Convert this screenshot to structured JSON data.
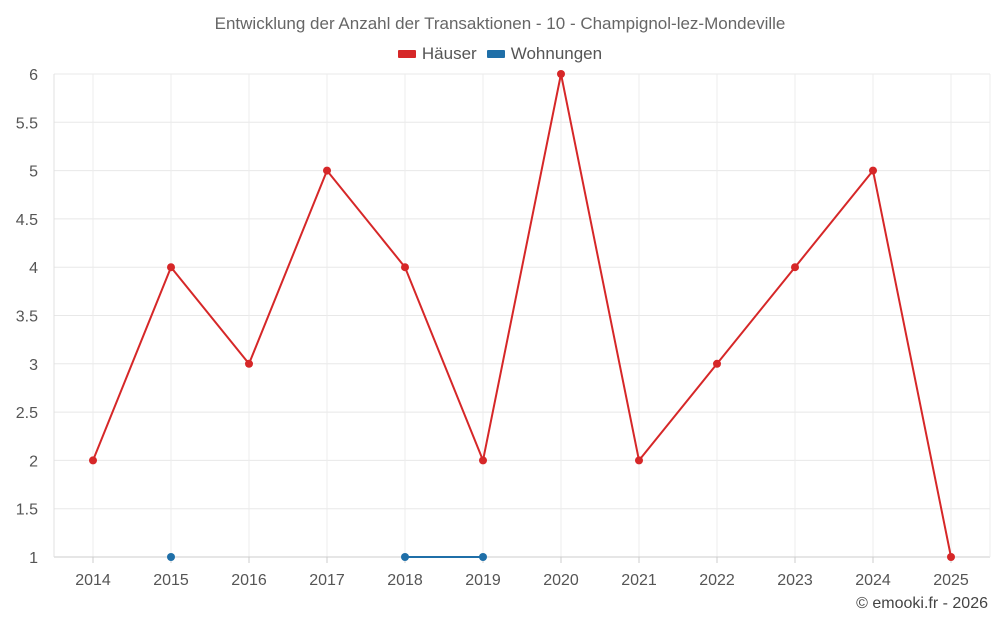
{
  "chart_data": {
    "type": "line",
    "title": "Entwicklung der Anzahl der Transaktionen - 10 - Champignol-lez-Mondeville",
    "categories": [
      "2014",
      "2015",
      "2016",
      "2017",
      "2018",
      "2019",
      "2020",
      "2021",
      "2022",
      "2023",
      "2024",
      "2025"
    ],
    "series": [
      {
        "name": "Häuser",
        "color": "#d62728",
        "values": [
          2,
          4,
          3,
          5,
          4,
          2,
          6,
          2,
          3,
          4,
          5,
          1
        ]
      },
      {
        "name": "Wohnungen",
        "color": "#1f6fa8",
        "values": [
          null,
          1,
          null,
          null,
          1,
          1,
          null,
          null,
          null,
          null,
          null,
          null
        ]
      }
    ],
    "yticks": [
      "1",
      "1.5",
      "2",
      "2.5",
      "3",
      "3.5",
      "4",
      "4.5",
      "5",
      "5.5",
      "6"
    ],
    "ylim": [
      1,
      6
    ],
    "xlabel": "",
    "ylabel": "",
    "grid": true,
    "legend_position": "top-center"
  },
  "credit": "© emooki.fr - 2026"
}
